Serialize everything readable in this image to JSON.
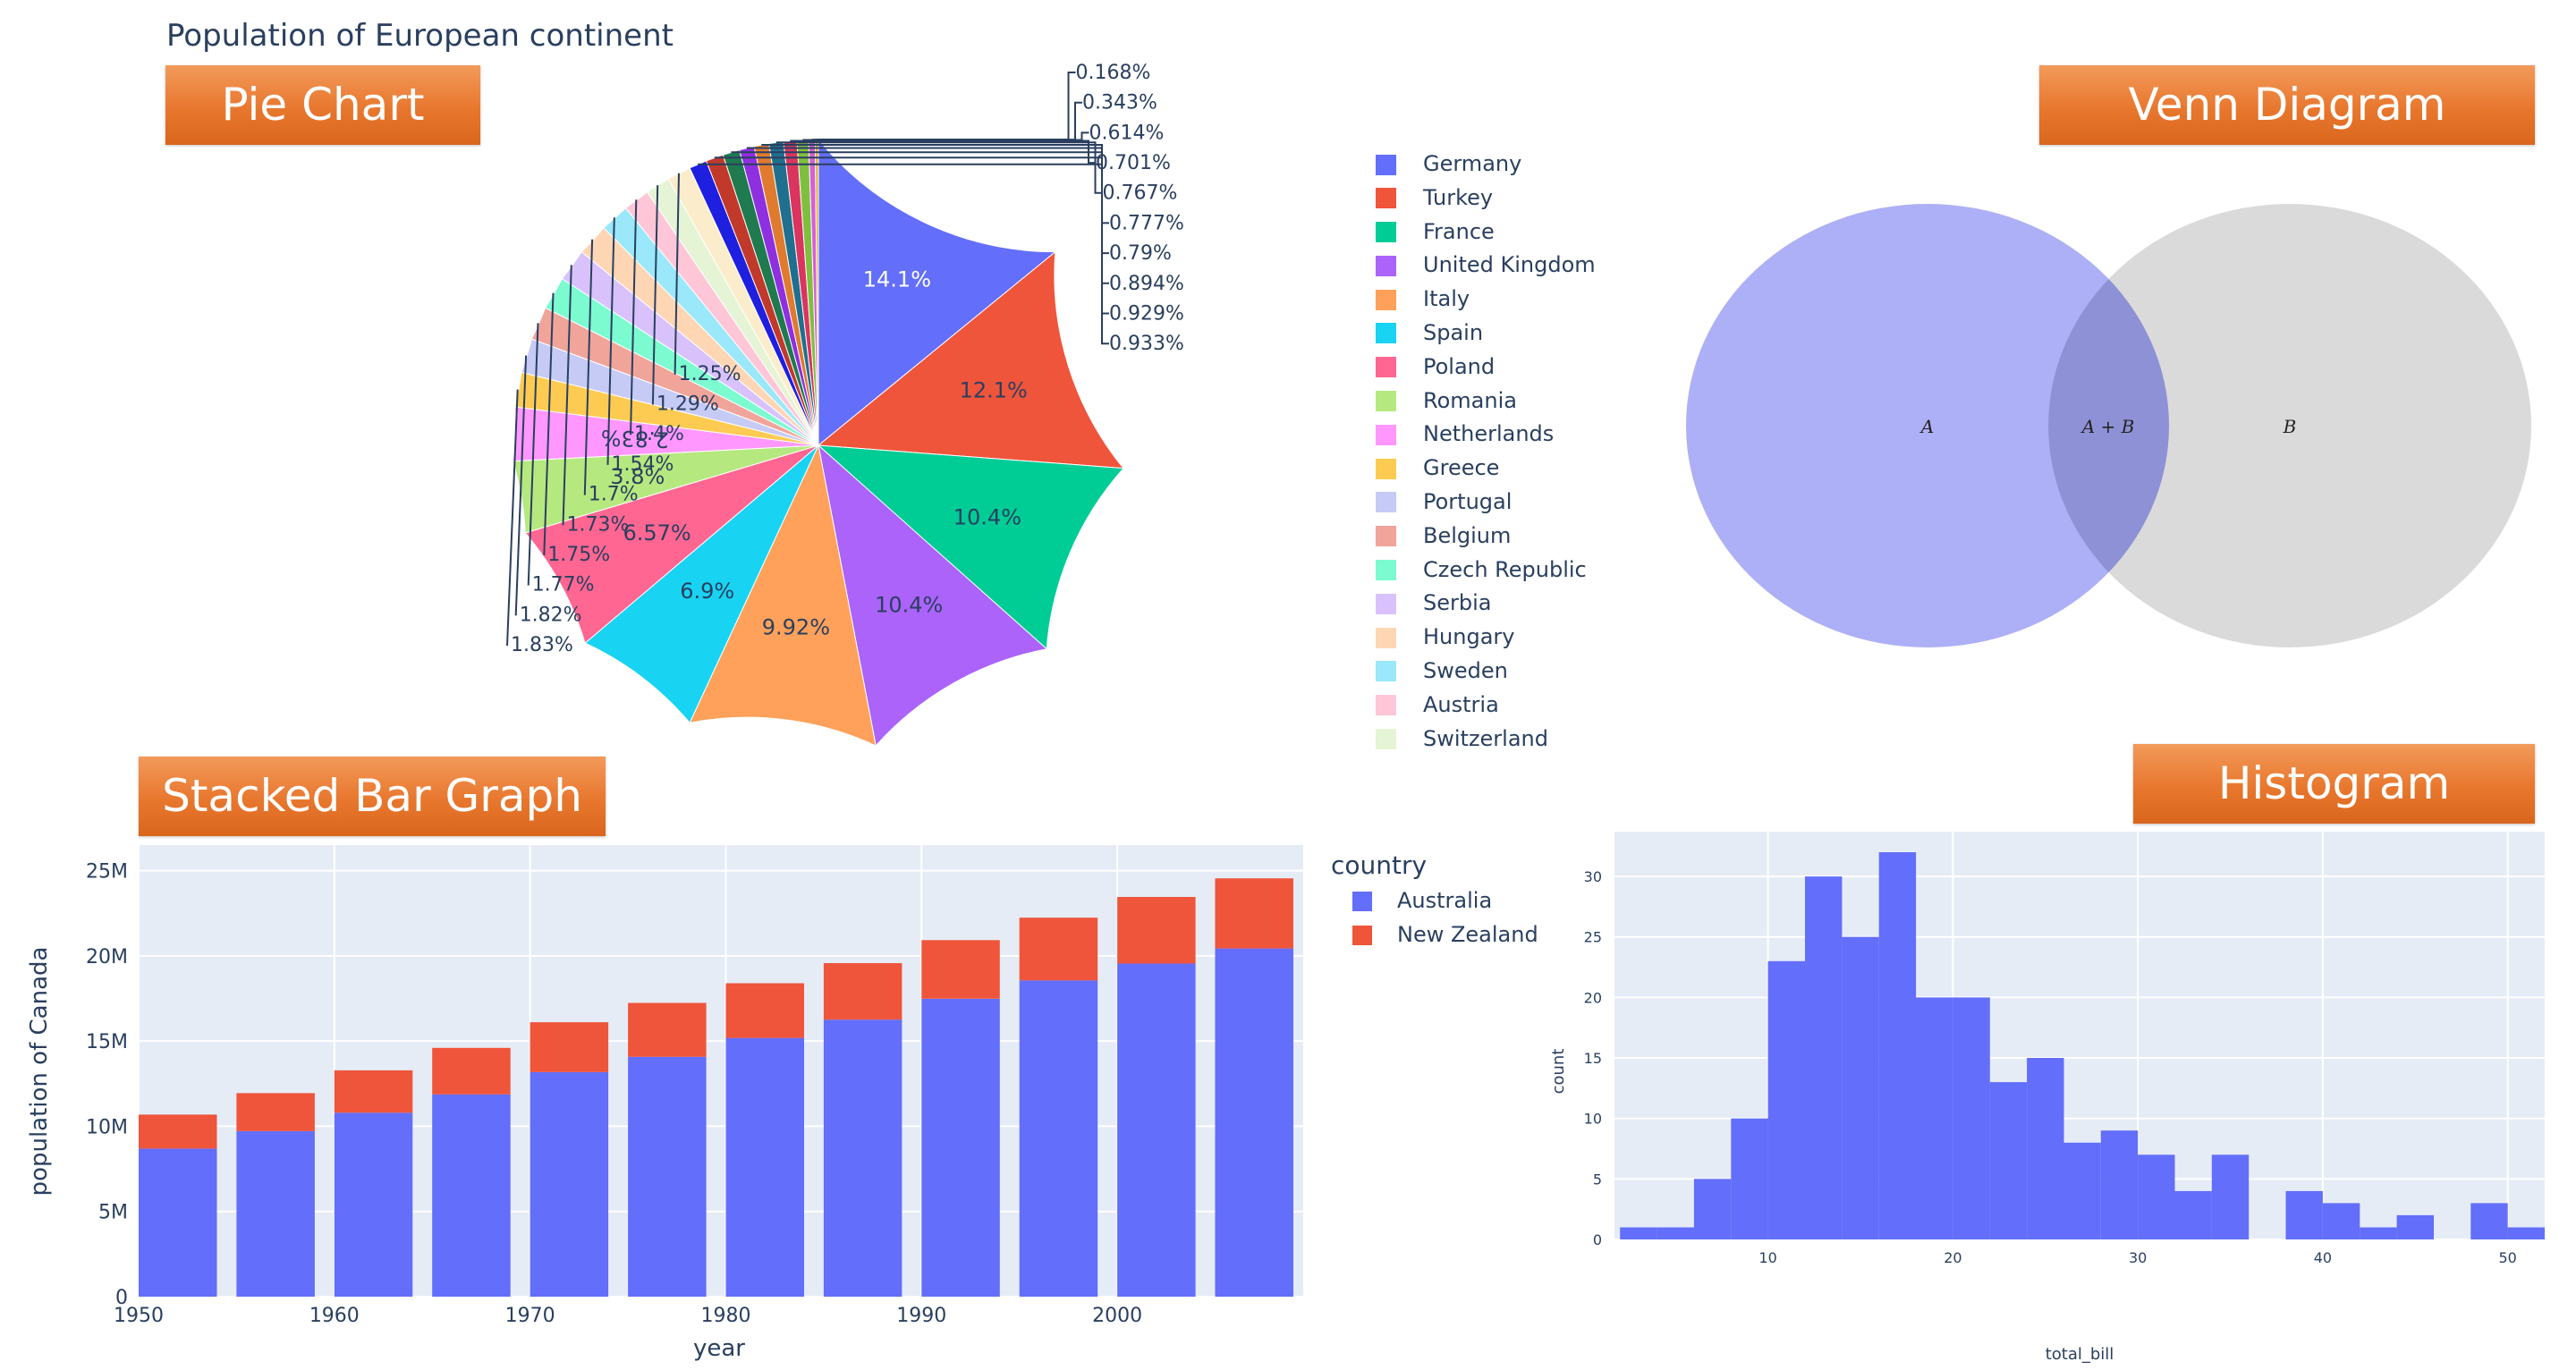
{
  "page_title": "Population of European continent",
  "banners": {
    "pie": "Pie Chart",
    "venn": "Venn Diagram",
    "bar": "Stacked Bar Graph",
    "hist": "Histogram"
  },
  "chart_data": [
    {
      "type": "pie",
      "title": "Population of European continent",
      "categories": [
        "Germany",
        "Turkey",
        "France",
        "United Kingdom",
        "Italy",
        "Spain",
        "Poland",
        "Romania",
        "Netherlands",
        "Greece",
        "Portugal",
        "Belgium",
        "Czech Republic",
        "Serbia",
        "Hungary",
        "Sweden",
        "Austria",
        "Switzerland"
      ],
      "legend_colors": [
        "#636efa",
        "#ef553b",
        "#00cc96",
        "#ab63fa",
        "#ffa15a",
        "#19d3f3",
        "#ff6692",
        "#b6e880",
        "#ff97ff",
        "#fecb52",
        "#c6cbf5",
        "#f0a49a",
        "#7dfbd0",
        "#d9c2fc",
        "#ffd6b4",
        "#9ae8fa",
        "#ffc6d7",
        "#e5f4d5"
      ],
      "slices": [
        {
          "label": "Germany",
          "value": 14.1,
          "color": "#636efa",
          "text": "14.1%"
        },
        {
          "label": "Turkey",
          "value": 12.1,
          "color": "#ef553b",
          "text": "12.1%"
        },
        {
          "label": "France",
          "value": 10.4,
          "color": "#00cc96",
          "text": "10.4%"
        },
        {
          "label": "United Kingdom",
          "value": 10.4,
          "color": "#ab63fa",
          "text": "10.4%"
        },
        {
          "label": "Italy",
          "value": 9.92,
          "color": "#ffa15a",
          "text": "9.92%"
        },
        {
          "label": "Spain",
          "value": 6.9,
          "color": "#19d3f3",
          "text": "6.9%"
        },
        {
          "label": "Poland",
          "value": 6.57,
          "color": "#ff6692",
          "text": "6.57%"
        },
        {
          "label": "Romania",
          "value": 3.8,
          "color": "#b6e880",
          "text": "3.8%"
        },
        {
          "label": "Netherlands",
          "value": 2.83,
          "color": "#ff97ff",
          "text": "2.83%"
        },
        {
          "label": "Greece",
          "value": 1.83,
          "color": "#fecb52",
          "text": "1.83%"
        },
        {
          "label": "Portugal",
          "value": 1.82,
          "color": "#c6cbf5",
          "text": "1.82%"
        },
        {
          "label": "Belgium",
          "value": 1.77,
          "color": "#f0a49a",
          "text": "1.77%"
        },
        {
          "label": "Czech Republic",
          "value": 1.75,
          "color": "#7dfbd0",
          "text": "1.75%"
        },
        {
          "label": "Serbia",
          "value": 1.73,
          "color": "#d9c2fc",
          "text": "1.73%"
        },
        {
          "label": "Hungary",
          "value": 1.7,
          "color": "#ffd6b4",
          "text": "1.7%"
        },
        {
          "label": "Sweden",
          "value": 1.54,
          "color": "#9ae8fa",
          "text": "1.54%"
        },
        {
          "label": "Austria",
          "value": 1.4,
          "color": "#ffc6d7",
          "text": "1.4%"
        },
        {
          "label": "Switzerland",
          "value": 1.29,
          "color": "#e5f4d5",
          "text": "1.29%"
        },
        {
          "value": 1.25,
          "color": "#fbeccb",
          "text": "1.25%"
        },
        {
          "value": 0.933,
          "color": "#1f1fe0",
          "text": "0.933%"
        },
        {
          "value": 0.929,
          "color": "#c0392b",
          "text": "0.929%"
        },
        {
          "value": 0.894,
          "color": "#1f7a4f",
          "text": "0.894%"
        },
        {
          "value": 0.79,
          "color": "#8e2fe0",
          "text": "0.79%"
        },
        {
          "value": 0.777,
          "color": "#e07a2f",
          "text": "0.777%"
        },
        {
          "value": 0.767,
          "color": "#1f6f8f",
          "text": "0.767%"
        },
        {
          "value": 0.701,
          "color": "#d9355f",
          "text": "0.701%"
        },
        {
          "value": 0.614,
          "color": "#7fbf3f",
          "text": "0.614%"
        },
        {
          "value": 0.343,
          "color": "#d65fd6",
          "text": "0.343%"
        },
        {
          "value": 0.168,
          "color": "#e0b030",
          "text": "0.168%"
        }
      ]
    },
    {
      "type": "diagram",
      "sets": [
        {
          "label": "A",
          "color": "#a9acf5"
        },
        {
          "label": "B",
          "color": "#d3d3d3"
        }
      ],
      "intersection_label": "A + B"
    },
    {
      "type": "bar",
      "stacked": true,
      "xlabel": "year",
      "ylabel": "population of Canada",
      "legend_title": "country",
      "legend_position": "top-right",
      "x": [
        1952,
        1957,
        1962,
        1967,
        1972,
        1977,
        1982,
        1987,
        1992,
        1997,
        2002,
        2007
      ],
      "xticks": [
        1950,
        1960,
        1970,
        1980,
        1990,
        2000
      ],
      "xlim": [
        1950,
        2009.5
      ],
      "ylim": [
        0,
        26500000
      ],
      "yticks": [
        0,
        5000000,
        10000000,
        15000000,
        20000000,
        25000000
      ],
      "ytick_labels": [
        "0",
        "5M",
        "10M",
        "15M",
        "20M",
        "25M"
      ],
      "series": [
        {
          "name": "Australia",
          "color": "#636efa",
          "values": [
            8691212,
            9712569,
            10794968,
            11872264,
            13177000,
            14074100,
            15184200,
            16257249,
            17481977,
            18565243,
            19546792,
            20434176
          ]
        },
        {
          "name": "New Zealand",
          "color": "#ef553b",
          "values": [
            1994794,
            2229407,
            2488550,
            2728150,
            2929100,
            3164900,
            3210650,
            3317166,
            3437674,
            3676187,
            3908037,
            4115771
          ]
        }
      ]
    },
    {
      "type": "bar",
      "subtype": "histogram",
      "xlabel": "total_bill",
      "ylabel": "count",
      "bin_width": 2,
      "bin_starts": [
        2,
        4,
        6,
        8,
        10,
        12,
        14,
        16,
        18,
        20,
        22,
        24,
        26,
        28,
        30,
        32,
        34,
        36,
        38,
        40,
        42,
        44,
        46,
        48,
        50
      ],
      "values": [
        1,
        1,
        5,
        10,
        23,
        30,
        25,
        32,
        20,
        20,
        13,
        15,
        8,
        9,
        7,
        4,
        7,
        0,
        4,
        3,
        1,
        2,
        0,
        3,
        1
      ],
      "xlim": [
        1.7,
        52
      ],
      "ylim": [
        0,
        33.7
      ],
      "xticks": [
        10,
        20,
        30,
        40,
        50
      ],
      "yticks": [
        0,
        5,
        10,
        15,
        20,
        25,
        30
      ],
      "color": "#636efa"
    }
  ]
}
